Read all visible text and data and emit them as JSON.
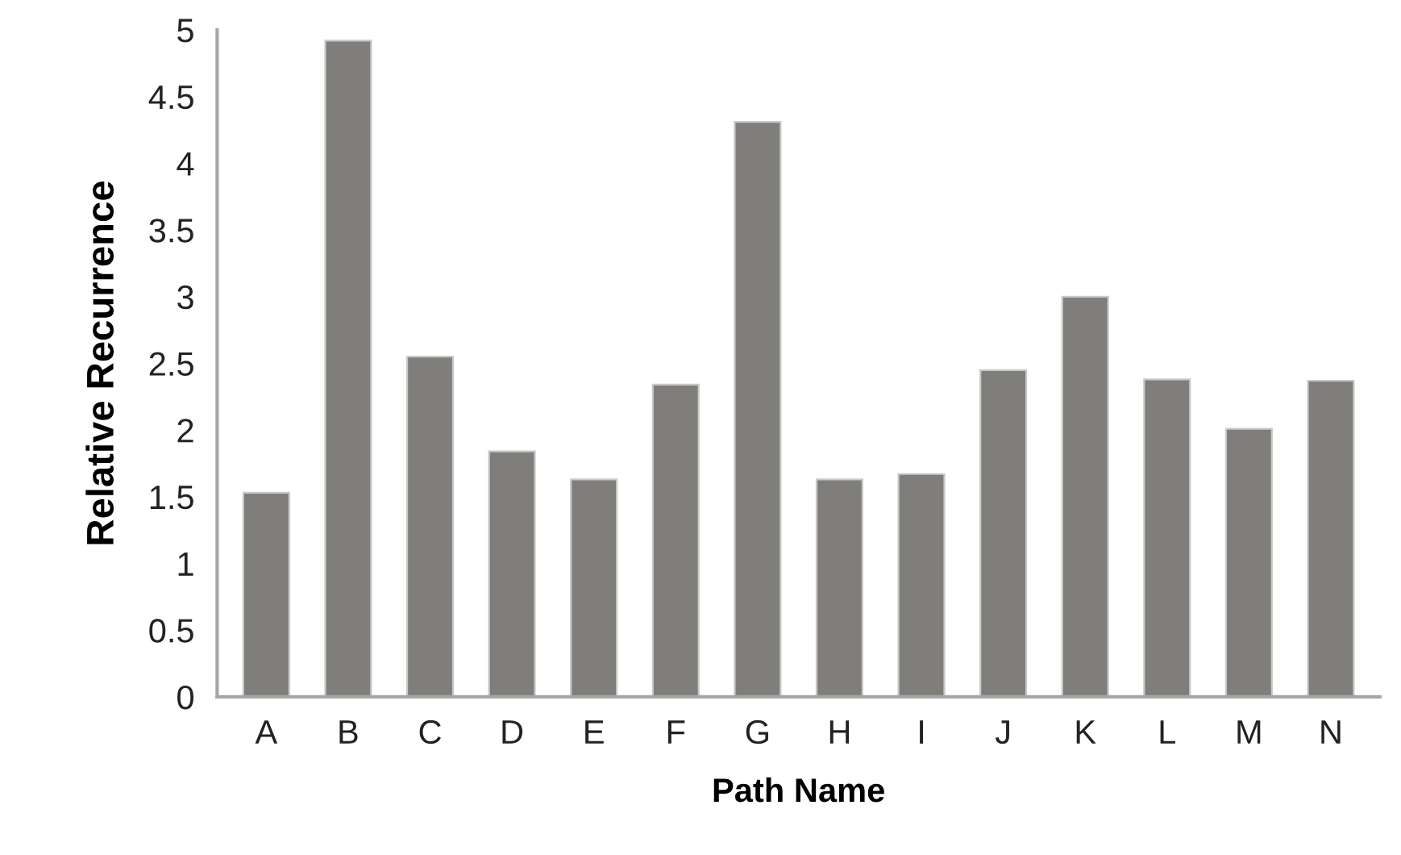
{
  "chart_data": {
    "type": "bar",
    "xlabel": "Path Name",
    "ylabel": "Relative Recurrence",
    "categories": [
      "A",
      "B",
      "C",
      "D",
      "E",
      "F",
      "G",
      "H",
      "I",
      "J",
      "K",
      "L",
      "M",
      "N"
    ],
    "values": [
      1.53,
      4.92,
      2.55,
      1.84,
      1.63,
      2.34,
      4.31,
      1.63,
      1.67,
      2.45,
      3.0,
      2.38,
      2.01,
      2.37
    ],
    "color": "#7f7e7a",
    "ylim": [
      0,
      5
    ],
    "yticks": [
      0,
      0.5,
      1,
      1.5,
      2,
      2.5,
      3,
      3.5,
      4,
      4.5,
      5
    ],
    "grid": false,
    "legend": false
  }
}
